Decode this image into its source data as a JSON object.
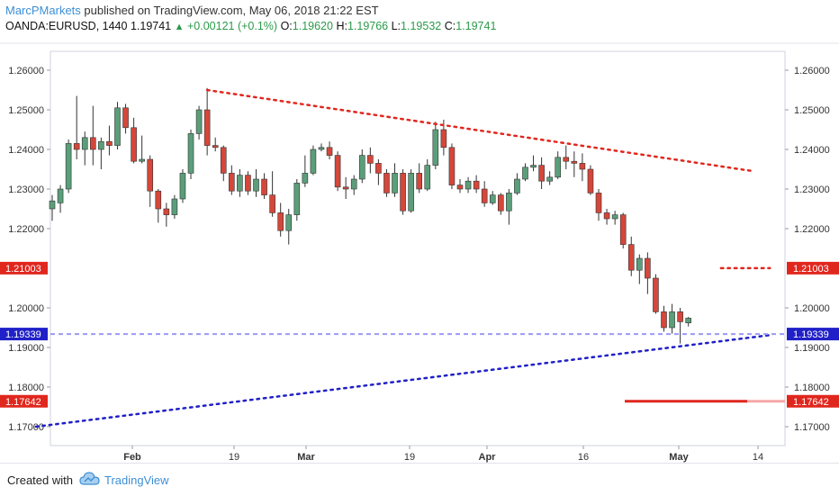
{
  "header": {
    "author": "MarcPMarkets",
    "published": "published on TradingView.com, May 06, 2018 21:22 EST",
    "symbol": "OANDA:EURUSD, 1440",
    "last": "1.19741",
    "change": "+0.00121 (+0.1%)",
    "o_label": "O:",
    "o": "1.19620",
    "h_label": "H:",
    "h": "1.19766",
    "l_label": "L:",
    "l": "1.19532",
    "c_label": "C:",
    "c": "1.19741"
  },
  "footer": {
    "created_with": "Created with",
    "brand": "TradingView"
  },
  "colors": {
    "up": "#5b9e7a",
    "down": "#d4473a",
    "resistance": "#e0271e",
    "support": "#2020c8",
    "level": "#9a9af5"
  },
  "chart_data": {
    "type": "candlestick",
    "yticks": [
      "1.26000",
      "1.25000",
      "1.24000",
      "1.23000",
      "1.22000",
      "1.20000",
      "1.19000",
      "1.18000",
      "1.17000"
    ],
    "ylim": [
      1.1655,
      1.2655
    ],
    "xticks": [
      "Feb",
      "19",
      "Mar",
      "19",
      "Apr",
      "16",
      "May",
      "14"
    ],
    "price_labels": [
      {
        "label": "1.21003",
        "value": 1.21003,
        "color": "#e0271e"
      },
      {
        "label": "1.19339",
        "value": 1.19339,
        "color": "#2020c8"
      },
      {
        "label": "1.17642",
        "value": 1.17642,
        "color": "#e0271e"
      }
    ],
    "candles": [
      [
        1.225,
        1.227,
        1.222,
        1.2285
      ],
      [
        1.2265,
        1.23,
        1.224,
        1.231
      ],
      [
        1.23,
        1.2415,
        1.229,
        1.2425
      ],
      [
        1.2415,
        1.24,
        1.2375,
        1.2535
      ],
      [
        1.24,
        1.243,
        1.236,
        1.2445
      ],
      [
        1.243,
        1.24,
        1.236,
        1.251
      ],
      [
        1.24,
        1.242,
        1.235,
        1.243
      ],
      [
        1.242,
        1.241,
        1.2385,
        1.246
      ],
      [
        1.241,
        1.2505,
        1.24,
        1.252
      ],
      [
        1.2505,
        1.2455,
        1.244,
        1.2515
      ],
      [
        1.2455,
        1.237,
        1.2365,
        1.248
      ],
      [
        1.237,
        1.2375,
        1.2365,
        1.2435
      ],
      [
        1.2375,
        1.2295,
        1.2255,
        1.2385
      ],
      [
        1.2295,
        1.225,
        1.2215,
        1.23
      ],
      [
        1.225,
        1.2235,
        1.2205,
        1.2265
      ],
      [
        1.2235,
        1.2275,
        1.2225,
        1.2285
      ],
      [
        1.2275,
        1.234,
        1.2265,
        1.235
      ],
      [
        1.234,
        1.244,
        1.2325,
        1.245
      ],
      [
        1.244,
        1.25,
        1.2425,
        1.251
      ],
      [
        1.25,
        1.241,
        1.2385,
        1.2555
      ],
      [
        1.241,
        1.2405,
        1.2395,
        1.243
      ],
      [
        1.2405,
        1.234,
        1.232,
        1.241
      ],
      [
        1.234,
        1.2295,
        1.2285,
        1.236
      ],
      [
        1.2295,
        1.2335,
        1.228,
        1.235
      ],
      [
        1.2335,
        1.2295,
        1.2285,
        1.2345
      ],
      [
        1.2295,
        1.2325,
        1.228,
        1.235
      ],
      [
        1.2325,
        1.2285,
        1.2275,
        1.234
      ],
      [
        1.2285,
        1.224,
        1.223,
        1.2345
      ],
      [
        1.224,
        1.2195,
        1.218,
        1.2265
      ],
      [
        1.2195,
        1.2235,
        1.216,
        1.225
      ],
      [
        1.2235,
        1.2315,
        1.222,
        1.2325
      ],
      [
        1.2315,
        1.234,
        1.2305,
        1.2385
      ],
      [
        1.234,
        1.24,
        1.2335,
        1.241
      ],
      [
        1.24,
        1.2405,
        1.2395,
        1.2415
      ],
      [
        1.2405,
        1.2385,
        1.2375,
        1.242
      ],
      [
        1.2385,
        1.2305,
        1.2295,
        1.2395
      ],
      [
        1.2305,
        1.23,
        1.2275,
        1.233
      ],
      [
        1.23,
        1.2325,
        1.2285,
        1.2335
      ],
      [
        1.2325,
        1.2385,
        1.2315,
        1.24
      ],
      [
        1.2385,
        1.2365,
        1.234,
        1.2405
      ],
      [
        1.2365,
        1.234,
        1.231,
        1.2375
      ],
      [
        1.234,
        1.229,
        1.228,
        1.235
      ],
      [
        1.229,
        1.234,
        1.228,
        1.2365
      ],
      [
        1.234,
        1.2245,
        1.2235,
        1.235
      ],
      [
        1.2245,
        1.234,
        1.224,
        1.235
      ],
      [
        1.234,
        1.23,
        1.229,
        1.2365
      ],
      [
        1.23,
        1.236,
        1.2295,
        1.2375
      ],
      [
        1.236,
        1.245,
        1.235,
        1.247
      ],
      [
        1.245,
        1.2405,
        1.2385,
        1.2475
      ],
      [
        1.2405,
        1.231,
        1.23,
        1.2415
      ],
      [
        1.231,
        1.23,
        1.229,
        1.2325
      ],
      [
        1.23,
        1.232,
        1.229,
        1.233
      ],
      [
        1.232,
        1.23,
        1.229,
        1.2335
      ],
      [
        1.23,
        1.2265,
        1.2255,
        1.232
      ],
      [
        1.2265,
        1.2285,
        1.226,
        1.2295
      ],
      [
        1.2285,
        1.2245,
        1.2235,
        1.229
      ],
      [
        1.2245,
        1.229,
        1.221,
        1.23
      ],
      [
        1.229,
        1.2325,
        1.2285,
        1.234
      ],
      [
        1.2325,
        1.2355,
        1.232,
        1.2365
      ],
      [
        1.2355,
        1.236,
        1.2345,
        1.2385
      ],
      [
        1.236,
        1.232,
        1.23,
        1.238
      ],
      [
        1.232,
        1.233,
        1.231,
        1.2345
      ],
      [
        1.233,
        1.238,
        1.2325,
        1.2395
      ],
      [
        1.238,
        1.237,
        1.235,
        1.241
      ],
      [
        1.237,
        1.2365,
        1.233,
        1.2395
      ],
      [
        1.2365,
        1.235,
        1.232,
        1.239
      ],
      [
        1.235,
        1.229,
        1.2285,
        1.236
      ],
      [
        1.229,
        1.224,
        1.222,
        1.23
      ],
      [
        1.224,
        1.2225,
        1.221,
        1.225
      ],
      [
        1.2225,
        1.2235,
        1.221,
        1.2245
      ],
      [
        1.2235,
        1.216,
        1.215,
        1.224
      ],
      [
        1.216,
        1.2095,
        1.208,
        1.218
      ],
      [
        1.2095,
        1.2125,
        1.206,
        1.2135
      ],
      [
        1.2125,
        1.2075,
        1.2035,
        1.214
      ],
      [
        1.2075,
        1.199,
        1.1985,
        1.2085
      ],
      [
        1.199,
        1.195,
        1.194,
        1.2005
      ],
      [
        1.195,
        1.199,
        1.1935,
        1.201
      ],
      [
        1.199,
        1.1965,
        1.191,
        1.2
      ],
      [
        1.1962,
        1.1974,
        1.1953,
        1.1977
      ]
    ],
    "lines": [
      {
        "kind": "resistance",
        "from": {
          "i": 19,
          "y": 1.255
        },
        "to": {
          "i": 86,
          "y": 1.2345
        }
      },
      {
        "kind": "support",
        "from": {
          "i": -2,
          "y": 1.17
        },
        "to": {
          "i": 86,
          "y": 1.193
        }
      },
      {
        "kind": "level",
        "from": {
          "i": -2,
          "y": 1.19339
        },
        "to": {
          "i": 90,
          "y": 1.19339
        }
      },
      {
        "kind": "resistance-level",
        "from": {
          "i": 82,
          "y": 1.21003
        },
        "to": {
          "i": 88,
          "y": 1.21003
        }
      },
      {
        "kind": "target",
        "from": {
          "i": 73,
          "y": 1.17642
        },
        "to": {
          "i": 90,
          "y": 1.17642
        }
      }
    ]
  }
}
